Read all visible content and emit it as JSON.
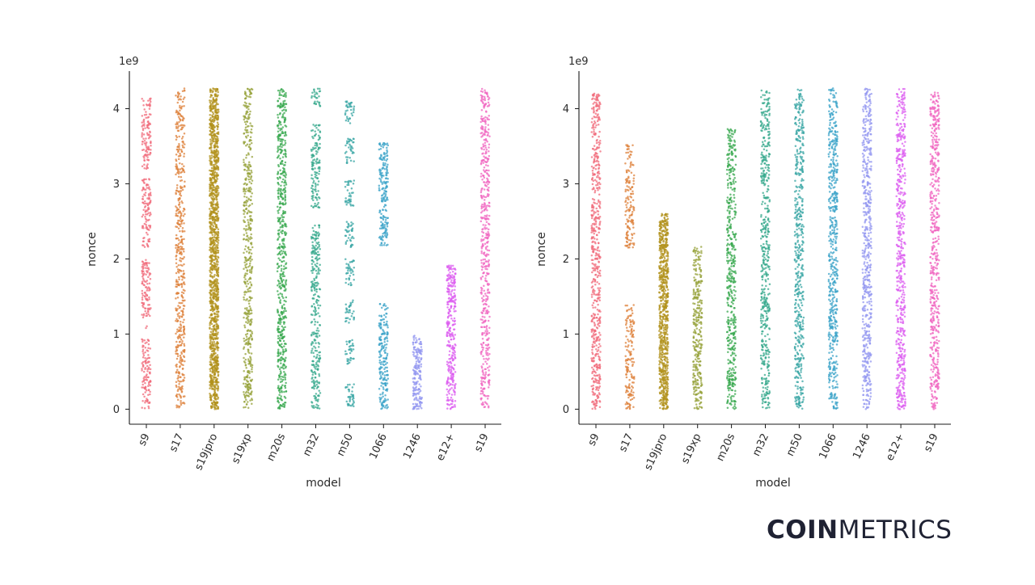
{
  "chart_data": [
    {
      "type": "scatter",
      "subtype": "strip",
      "title": "",
      "xlabel": "model",
      "ylabel": "nonce",
      "y_exponent_label": "1e9",
      "ylim": [
        -0.2,
        4.5
      ],
      "yticks": [
        0,
        1,
        2,
        3,
        4
      ],
      "ytick_labels": [
        "0",
        "1",
        "2",
        "3",
        "4"
      ],
      "categories": [
        "s9",
        "s17",
        "s19jpro",
        "s19xp",
        "m20s",
        "m32",
        "m50",
        "1066",
        "1246",
        "e12+",
        "s19"
      ],
      "colors": [
        "#f0697a",
        "#dd8039",
        "#b1921c",
        "#96a23a",
        "#38a84f",
        "#36a88c",
        "#38a6a4",
        "#3ba3c8",
        "#9397f0",
        "#dc5ef0",
        "#f065c0"
      ],
      "series": [
        {
          "name": "s9",
          "density": 1.0,
          "ranges": [
            [
              0.0,
              0.93
            ],
            [
              1.08,
              1.99
            ],
            [
              2.15,
              3.07
            ],
            [
              3.2,
              4.15
            ]
          ]
        },
        {
          "name": "s17",
          "density": 1.0,
          "ranges": [
            [
              0.0,
              4.27
            ]
          ]
        },
        {
          "name": "s19jpro",
          "density": 2.6,
          "ranges": [
            [
              0.0,
              4.27
            ]
          ]
        },
        {
          "name": "s19xp",
          "density": 1.0,
          "ranges": [
            [
              0.0,
              4.27
            ]
          ]
        },
        {
          "name": "m20s",
          "density": 1.2,
          "ranges": [
            [
              0.0,
              4.27
            ]
          ]
        },
        {
          "name": "m32",
          "density": 1.0,
          "ranges": [
            [
              0.0,
              2.45
            ],
            [
              2.67,
              3.8
            ],
            [
              4.03,
              4.27
            ]
          ]
        },
        {
          "name": "m50",
          "density": 0.9,
          "ranges": [
            [
              0.0,
              0.35
            ],
            [
              0.6,
              0.92
            ],
            [
              1.15,
              1.45
            ],
            [
              1.65,
              2.0
            ],
            [
              2.15,
              2.5
            ],
            [
              2.7,
              3.05
            ],
            [
              3.25,
              3.6
            ],
            [
              3.8,
              4.12
            ]
          ]
        },
        {
          "name": "1066",
          "density": 1.2,
          "ranges": [
            [
              0.0,
              1.4
            ],
            [
              2.15,
              3.55
            ]
          ]
        },
        {
          "name": "1246",
          "density": 1.6,
          "ranges": [
            [
              0.0,
              0.98
            ]
          ]
        },
        {
          "name": "e12+",
          "density": 1.4,
          "ranges": [
            [
              0.0,
              1.93
            ]
          ]
        },
        {
          "name": "s19",
          "density": 1.0,
          "ranges": [
            [
              0.0,
              4.27
            ]
          ]
        }
      ]
    },
    {
      "type": "scatter",
      "subtype": "strip",
      "title": "",
      "xlabel": "model",
      "ylabel": "nonce",
      "y_exponent_label": "1e9",
      "ylim": [
        -0.2,
        4.5
      ],
      "yticks": [
        0,
        1,
        2,
        3,
        4
      ],
      "ytick_labels": [
        "0",
        "1",
        "2",
        "3",
        "4"
      ],
      "categories": [
        "s9",
        "s17",
        "s19jpro",
        "s19xp",
        "m20s",
        "m32",
        "m50",
        "1066",
        "1246",
        "e12+",
        "s19"
      ],
      "colors": [
        "#f0697a",
        "#dd8039",
        "#b1921c",
        "#96a23a",
        "#38a84f",
        "#36a88c",
        "#38a6a4",
        "#3ba3c8",
        "#9397f0",
        "#dc5ef0",
        "#f065c0"
      ],
      "series": [
        {
          "name": "s9",
          "density": 1.1,
          "ranges": [
            [
              0.0,
              4.2
            ]
          ]
        },
        {
          "name": "s17",
          "density": 0.9,
          "ranges": [
            [
              0.0,
              1.4
            ],
            [
              2.15,
              3.53
            ]
          ]
        },
        {
          "name": "s19jpro",
          "density": 2.4,
          "ranges": [
            [
              0.0,
              2.6
            ]
          ]
        },
        {
          "name": "s19xp",
          "density": 1.2,
          "ranges": [
            [
              0.0,
              2.17
            ]
          ]
        },
        {
          "name": "m20s",
          "density": 1.1,
          "ranges": [
            [
              0.0,
              3.73
            ]
          ]
        },
        {
          "name": "m32",
          "density": 1.0,
          "ranges": [
            [
              0.0,
              4.25
            ]
          ]
        },
        {
          "name": "m50",
          "density": 1.0,
          "ranges": [
            [
              0.0,
              4.27
            ]
          ]
        },
        {
          "name": "1066",
          "density": 1.1,
          "ranges": [
            [
              0.0,
              4.27
            ]
          ]
        },
        {
          "name": "1246",
          "density": 1.1,
          "ranges": [
            [
              0.0,
              4.27
            ]
          ]
        },
        {
          "name": "e12+",
          "density": 1.1,
          "ranges": [
            [
              0.0,
              4.27
            ]
          ]
        },
        {
          "name": "s19",
          "density": 1.1,
          "ranges": [
            [
              0.0,
              4.22
            ]
          ]
        }
      ]
    }
  ],
  "brand": {
    "bold": "COIN",
    "light": "METRICS"
  }
}
